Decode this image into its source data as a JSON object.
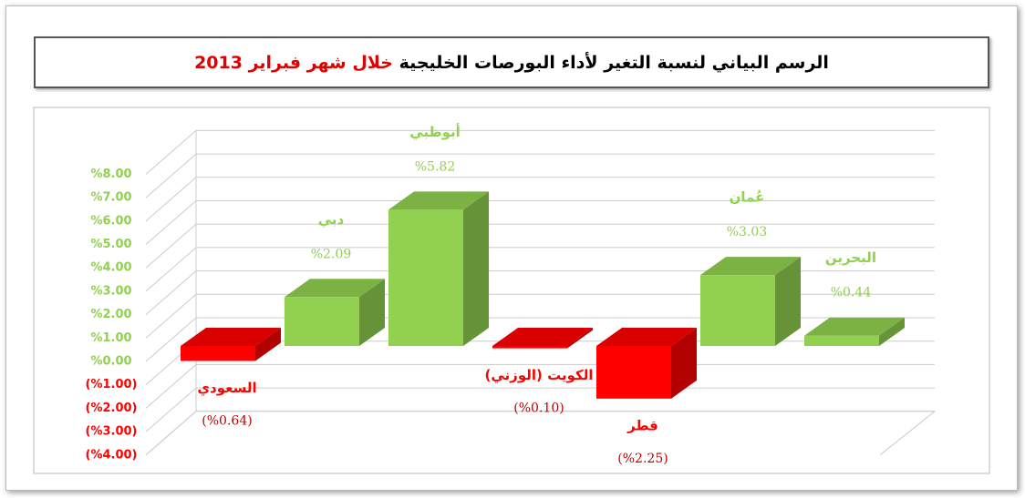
{
  "chart_data": {
    "type": "bar3d",
    "title": "الرسم البياني لنسبة التغير لأداء البورصات الخليجية",
    "title_highlight": "خلال شهر فبراير 2013",
    "categories": [
      "السعودي",
      "دبي",
      "أبوظبي",
      "الكويت (الوزني)",
      "قطر",
      "عُمان",
      "البحرين"
    ],
    "values": [
      -0.64,
      2.09,
      5.82,
      -0.1,
      -2.25,
      3.03,
      0.44
    ],
    "value_labels": [
      "(%0.64)",
      "%2.09",
      "%5.82",
      "(%0.10)",
      "(%2.25)",
      "%3.03",
      "%0.44"
    ],
    "colors": {
      "positive": "#92d050",
      "negative": "#ff0000"
    },
    "ylim": [
      -4,
      8
    ],
    "yticks": [
      {
        "value": -4,
        "label": "(%4.00)"
      },
      {
        "value": -3,
        "label": "(%3.00)"
      },
      {
        "value": -2,
        "label": "(%2.00)"
      },
      {
        "value": -1,
        "label": "(%1.00)"
      },
      {
        "value": 0,
        "label": "%0.00"
      },
      {
        "value": 1,
        "label": "%1.00"
      },
      {
        "value": 2,
        "label": "%2.00"
      },
      {
        "value": 3,
        "label": "%3.00"
      },
      {
        "value": 4,
        "label": "%4.00"
      },
      {
        "value": 5,
        "label": "%5.00"
      },
      {
        "value": 6,
        "label": "%6.00"
      },
      {
        "value": 7,
        "label": "%7.00"
      },
      {
        "value": 8,
        "label": "%8.00"
      }
    ],
    "grid": true
  }
}
